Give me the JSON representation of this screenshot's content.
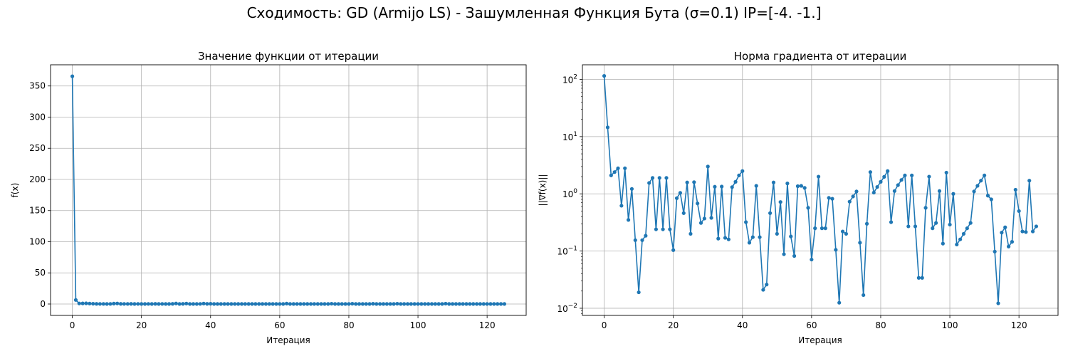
{
  "suptitle": "Сходимость: GD (Armijo LS) - Зашумленная Функция Бута (σ=0.1) IP=[-4. -1.]",
  "chart_data": [
    {
      "type": "line",
      "title": "Значение функции от итерации",
      "xlabel": "Итерация",
      "ylabel": "f(x)",
      "xlim": [
        -6.3,
        131.3
      ],
      "ylim": [
        -18.3,
        384.0
      ],
      "yscale": "linear",
      "xticks": [
        0,
        20,
        40,
        60,
        80,
        100,
        120
      ],
      "yticks": [
        0,
        50,
        100,
        150,
        200,
        250,
        300,
        350
      ],
      "grid": true,
      "color": "#1f77b4",
      "x": [
        0,
        1,
        2,
        3,
        4,
        5,
        6,
        7,
        8,
        9,
        10,
        11,
        12,
        13,
        14,
        15,
        16,
        17,
        18,
        19,
        20,
        21,
        22,
        23,
        24,
        25,
        26,
        27,
        28,
        29,
        30,
        31,
        32,
        33,
        34,
        35,
        36,
        37,
        38,
        39,
        40,
        41,
        42,
        43,
        44,
        45,
        46,
        47,
        48,
        49,
        50,
        51,
        52,
        53,
        54,
        55,
        56,
        57,
        58,
        59,
        60,
        61,
        62,
        63,
        64,
        65,
        66,
        67,
        68,
        69,
        70,
        71,
        72,
        73,
        74,
        75,
        76,
        77,
        78,
        79,
        80,
        81,
        82,
        83,
        84,
        85,
        86,
        87,
        88,
        89,
        90,
        91,
        92,
        93,
        94,
        95,
        96,
        97,
        98,
        99,
        100,
        101,
        102,
        103,
        104,
        105,
        106,
        107,
        108,
        109,
        110,
        111,
        112,
        113,
        114,
        115,
        116,
        117,
        118,
        119,
        120,
        121,
        122,
        123,
        124,
        125
      ],
      "values": [
        365.6,
        6.5,
        0.9,
        1.0,
        1.1,
        0.8,
        0.5,
        0.3,
        0.2,
        0.2,
        0.1,
        0.2,
        0.7,
        0.9,
        0.3,
        0.2,
        0.2,
        0.3,
        0.1,
        0.2,
        0.1,
        0.1,
        0.2,
        0.1,
        0.3,
        0.1,
        0.2,
        0.1,
        0.1,
        0.3,
        0.9,
        0.1,
        0.3,
        0.8,
        0.1,
        0.1,
        0.1,
        0.2,
        0.8,
        0.3,
        0.4,
        0.1,
        0.1,
        0.1,
        0.1,
        0.1,
        0.1,
        0.1,
        0.1,
        0.1,
        0.1,
        0.1,
        0.1,
        0.1,
        0.1,
        0.1,
        0.1,
        0.1,
        0.1,
        0.1,
        0.1,
        0.1,
        0.7,
        0.1,
        0.1,
        0.1,
        0.1,
        0.1,
        0.1,
        0.1,
        0.1,
        0.1,
        0.1,
        0.1,
        0.1,
        0.5,
        0.1,
        0.1,
        0.1,
        0.1,
        0.1,
        0.5,
        0.1,
        0.1,
        0.1,
        0.1,
        0.1,
        0.4,
        0.1,
        0.1,
        0.1,
        0.1,
        0.1,
        0.1,
        0.5,
        0.1,
        0.1,
        0.1,
        0.1,
        0.1,
        0.1,
        0.1,
        0.1,
        0.1,
        0.1,
        0.1,
        0.1,
        0.1,
        0.6,
        0.1,
        0.1,
        0.1,
        0.1,
        0.1,
        0.1,
        0.1,
        0.1,
        0.1,
        0.1,
        0.1,
        0.1,
        0.1,
        0.1,
        0.1,
        0.1,
        0.1
      ]
    },
    {
      "type": "line",
      "title": "Норма градиента от итерации",
      "xlabel": "Итерация",
      "ylabel": "||∇f(x)||",
      "xlim": [
        -6.3,
        131.3
      ],
      "ylim": [
        0.0075,
        180
      ],
      "yscale": "log",
      "xticks": [
        0,
        20,
        40,
        60,
        80,
        100,
        120
      ],
      "yticks": [
        0.01,
        0.1,
        1,
        10,
        100
      ],
      "ytick_labels": [
        [
          "10",
          "−2"
        ],
        [
          "10",
          "−1"
        ],
        [
          "10",
          "0"
        ],
        [
          "10",
          "1"
        ],
        [
          "10",
          "2"
        ]
      ],
      "grid": true,
      "color": "#1f77b4",
      "x": [
        0,
        1,
        2,
        3,
        4,
        5,
        6,
        7,
        8,
        9,
        10,
        11,
        12,
        13,
        14,
        15,
        16,
        17,
        18,
        19,
        20,
        21,
        22,
        23,
        24,
        25,
        26,
        27,
        28,
        29,
        30,
        31,
        32,
        33,
        34,
        35,
        36,
        37,
        38,
        39,
        40,
        41,
        42,
        43,
        44,
        45,
        46,
        47,
        48,
        49,
        50,
        51,
        52,
        53,
        54,
        55,
        56,
        57,
        58,
        59,
        60,
        61,
        62,
        63,
        64,
        65,
        66,
        67,
        68,
        69,
        70,
        71,
        72,
        73,
        74,
        75,
        76,
        77,
        78,
        79,
        80,
        81,
        82,
        83,
        84,
        85,
        86,
        87,
        88,
        89,
        90,
        91,
        92,
        93,
        94,
        95,
        96,
        97,
        98,
        99,
        100,
        101,
        102,
        103,
        104,
        105,
        106,
        107,
        108,
        109,
        110,
        111,
        112,
        113,
        114,
        115,
        116,
        117,
        118,
        119,
        120,
        121,
        122,
        123,
        124,
        125
      ],
      "values": [
        115,
        14.5,
        2.1,
        2.4,
        2.8,
        0.62,
        2.8,
        0.35,
        1.22,
        0.155,
        0.019,
        0.155,
        0.185,
        1.55,
        1.9,
        0.24,
        1.9,
        0.24,
        1.9,
        0.24,
        0.104,
        0.84,
        1.04,
        0.46,
        1.58,
        0.2,
        1.6,
        0.68,
        0.31,
        0.37,
        3.0,
        0.38,
        1.33,
        0.165,
        1.34,
        0.17,
        0.16,
        1.31,
        1.62,
        2.1,
        2.5,
        0.32,
        0.14,
        0.175,
        1.38,
        0.175,
        0.021,
        0.026,
        0.46,
        1.58,
        0.2,
        0.72,
        0.088,
        1.52,
        0.18,
        0.082,
        1.36,
        1.38,
        1.27,
        0.57,
        0.071,
        0.25,
        2.0,
        0.25,
        0.25,
        0.85,
        0.82,
        0.105,
        0.0125,
        0.22,
        0.2,
        0.73,
        0.9,
        1.1,
        0.14,
        0.017,
        0.3,
        2.4,
        1.05,
        1.32,
        1.62,
        1.98,
        2.5,
        0.32,
        1.12,
        1.42,
        1.75,
        2.1,
        0.27,
        2.1,
        0.27,
        0.034,
        0.034,
        0.57,
        2.0,
        0.25,
        0.31,
        1.12,
        0.135,
        2.35,
        0.29,
        1.0,
        0.13,
        0.16,
        0.2,
        0.25,
        0.31,
        1.1,
        1.38,
        1.7,
        2.1,
        0.93,
        0.8,
        0.098,
        0.0122,
        0.21,
        0.26,
        0.12,
        0.145,
        1.18,
        0.5,
        0.22,
        0.215,
        1.7,
        0.22,
        0.27
      ]
    }
  ]
}
